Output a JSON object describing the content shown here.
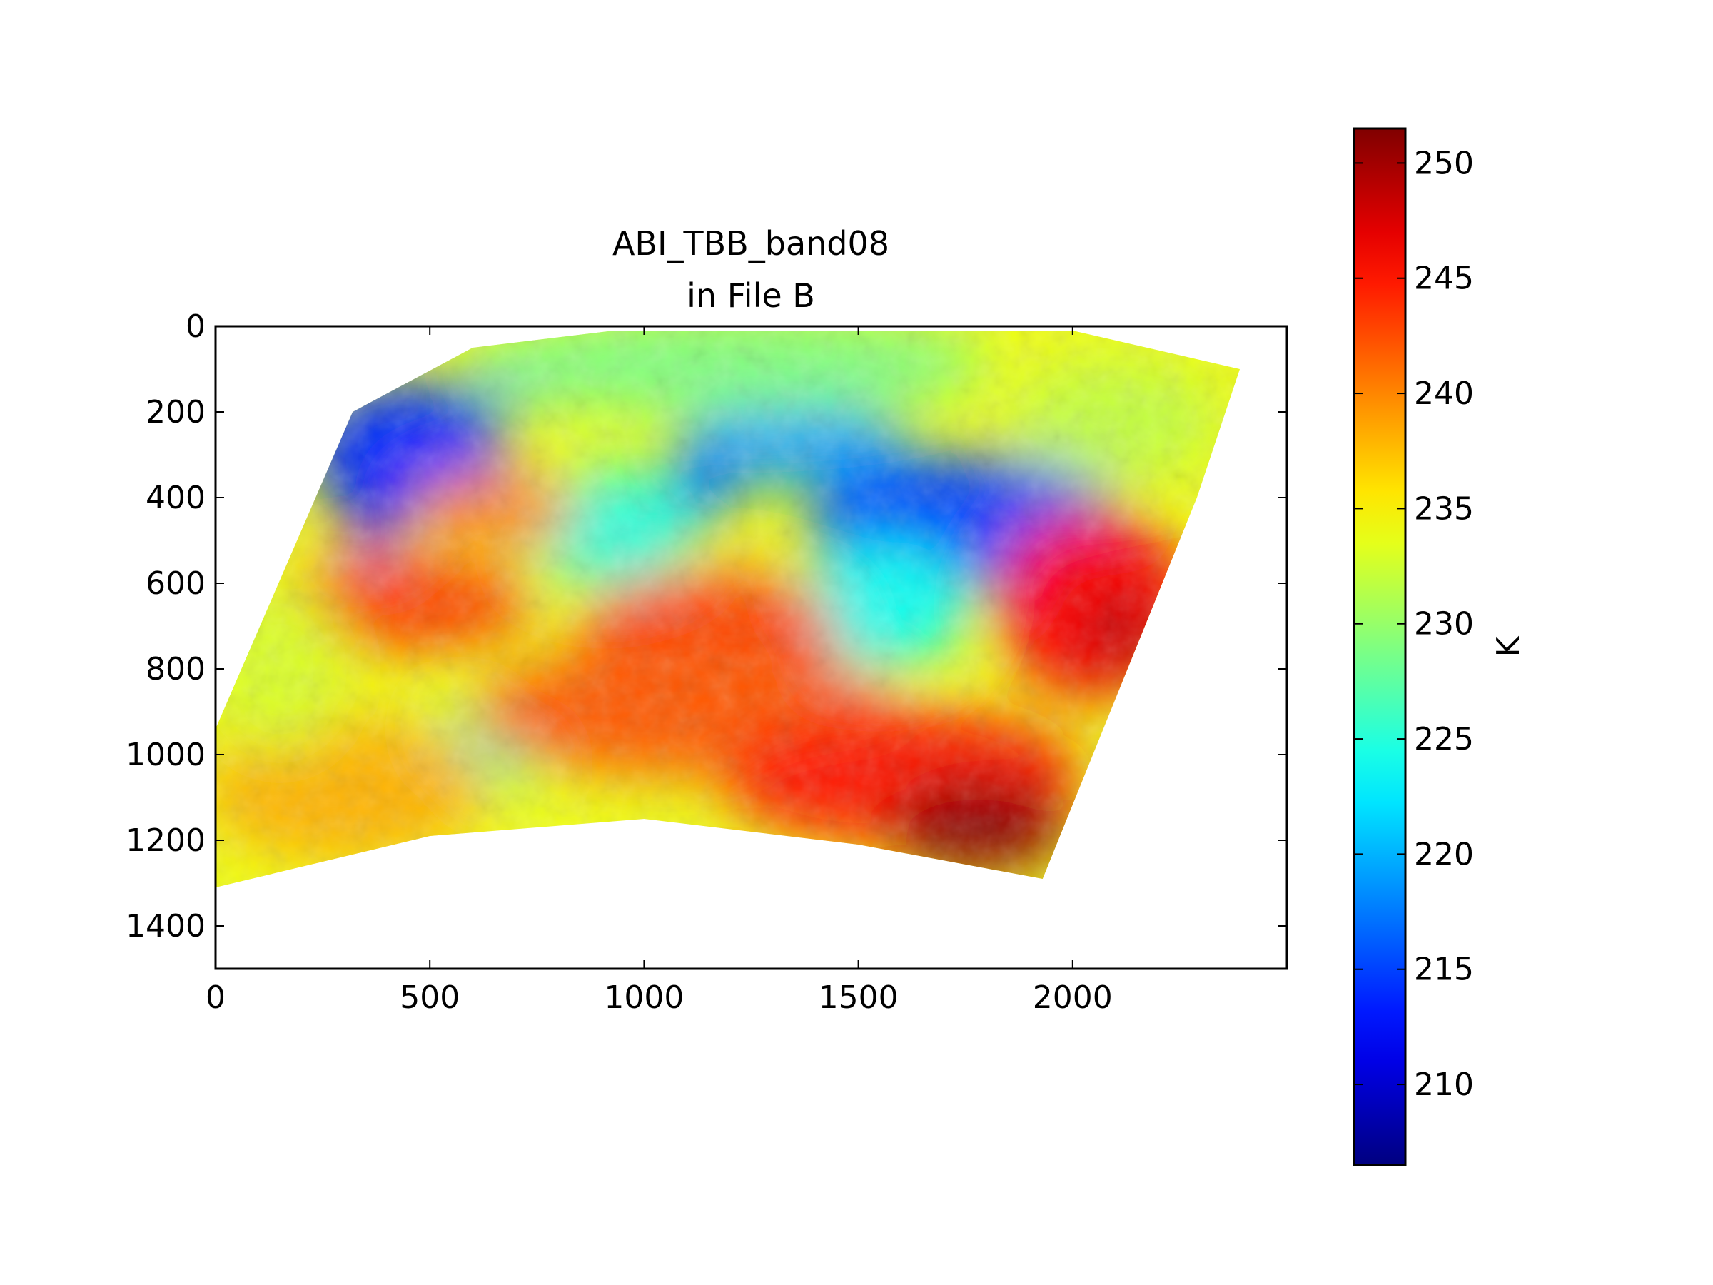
{
  "chart_data": {
    "type": "heatmap",
    "title_lines": [
      "ABI_TBB_band08",
      "in File B"
    ],
    "x_ticks": [
      0,
      500,
      1000,
      1500,
      2000
    ],
    "y_ticks": [
      0,
      200,
      400,
      600,
      800,
      1000,
      1200,
      1400
    ],
    "xlim": [
      0,
      2500
    ],
    "ylim": [
      1500,
      0
    ],
    "y_inverted": true,
    "colormap": "jet",
    "colorbar": {
      "label": "K",
      "ticks": [
        210,
        215,
        220,
        225,
        230,
        235,
        240,
        245,
        250
      ],
      "range": [
        206.5,
        251.5
      ],
      "placement": "right"
    },
    "grid": false,
    "field": {
      "description_units": "K",
      "swath_outline": [
        [
          0,
          940
        ],
        [
          320,
          200
        ],
        [
          600,
          50
        ],
        [
          930,
          10
        ],
        [
          2000,
          10
        ],
        [
          2390,
          100
        ],
        [
          2290,
          400
        ],
        [
          1930,
          1290
        ],
        [
          1500,
          1210
        ],
        [
          1000,
          1150
        ],
        [
          500,
          1190
        ],
        [
          0,
          1310
        ]
      ],
      "blobs": [
        {
          "x": 450,
          "y": 300,
          "rx": 230,
          "ry": 170,
          "value": 214
        },
        {
          "x": 360,
          "y": 450,
          "rx": 50,
          "ry": 90,
          "value": 212
        },
        {
          "x": 720,
          "y": 120,
          "rx": 140,
          "ry": 70,
          "value": 218
        },
        {
          "x": 1350,
          "y": 280,
          "rx": 280,
          "ry": 90,
          "value": 219
        },
        {
          "x": 1130,
          "y": 380,
          "rx": 80,
          "ry": 90,
          "value": 216
        },
        {
          "x": 1750,
          "y": 460,
          "rx": 370,
          "ry": 160,
          "value": 215
        },
        {
          "x": 1560,
          "y": 650,
          "rx": 200,
          "ry": 150,
          "value": 224
        },
        {
          "x": 1380,
          "y": 780,
          "rx": 110,
          "ry": 50,
          "value": 226
        },
        {
          "x": 920,
          "y": 470,
          "rx": 200,
          "ry": 140,
          "value": 225
        },
        {
          "x": 640,
          "y": 980,
          "rx": 140,
          "ry": 90,
          "value": 227
        },
        {
          "x": 1200,
          "y": 90,
          "rx": 600,
          "ry": 120,
          "value": 229
        },
        {
          "x": 420,
          "y": 650,
          "rx": 320,
          "ry": 110,
          "value": 243
        },
        {
          "x": 650,
          "y": 430,
          "rx": 190,
          "ry": 90,
          "value": 240
        },
        {
          "x": 1150,
          "y": 720,
          "rx": 300,
          "ry": 150,
          "value": 243
        },
        {
          "x": 1100,
          "y": 900,
          "rx": 500,
          "ry": 150,
          "value": 242
        },
        {
          "x": 2050,
          "y": 650,
          "rx": 230,
          "ry": 220,
          "value": 246
        },
        {
          "x": 2120,
          "y": 720,
          "rx": 80,
          "ry": 90,
          "value": 249
        },
        {
          "x": 1600,
          "y": 1050,
          "rx": 420,
          "ry": 160,
          "value": 245
        },
        {
          "x": 1780,
          "y": 1170,
          "rx": 210,
          "ry": 110,
          "value": 251
        },
        {
          "x": 300,
          "y": 1080,
          "rx": 330,
          "ry": 170,
          "value": 238
        },
        {
          "x": 150,
          "y": 800,
          "rx": 160,
          "ry": 200,
          "value": 233
        },
        {
          "x": 2100,
          "y": 220,
          "rx": 240,
          "ry": 140,
          "value": 232
        }
      ],
      "base_value": 234
    }
  }
}
